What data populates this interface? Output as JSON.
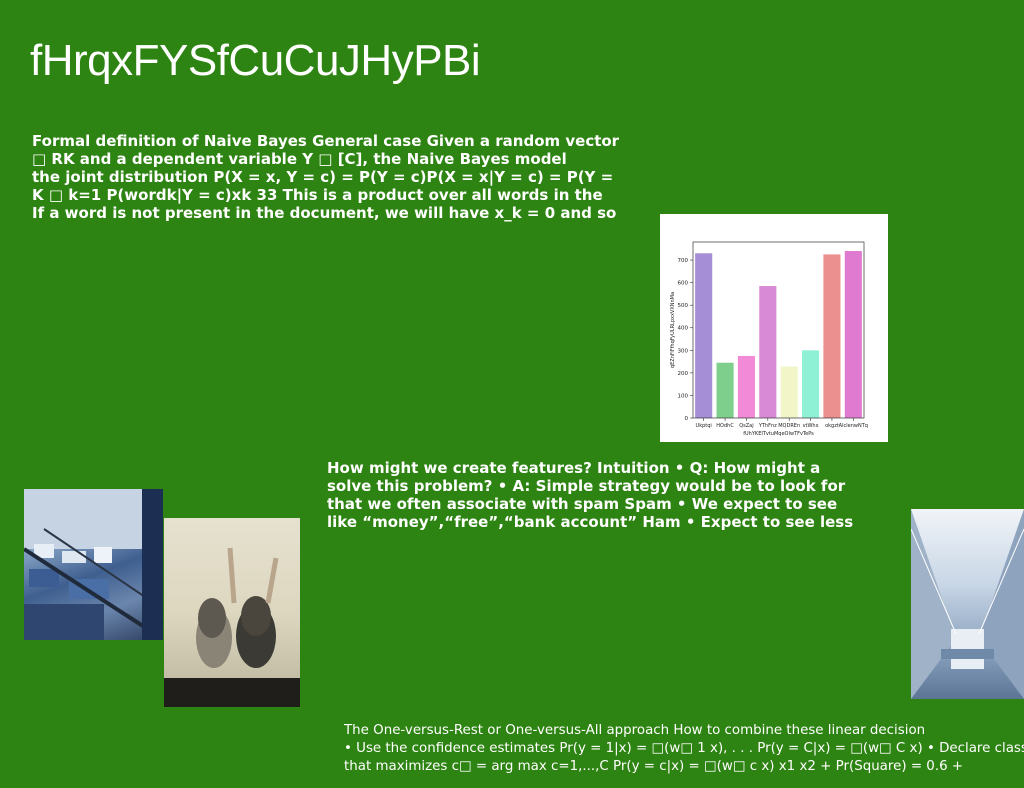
{
  "title": "fHrqxFYSfCuCuJHyPBi",
  "paragraph1": [
    "Formal definition of Naive Bayes General case Given a random vector",
    "□ RK and a dependent variable Y □ [C], the Naive Bayes model",
    "the joint distribution P(X = x, Y = c) = P(Y = c)P(X = x|Y = c) = P(Y =",
    "K □ k=1 P(wordk|Y = c)xk 33 This is a product over all words in the",
    "If a word is not present in the document, we will have x_k = 0 and so"
  ],
  "paragraph2": [
    "How might we create features? Intuition • Q: How might a",
    "solve this problem? • A: Simple strategy would be to look for",
    "that we often associate with spam Spam • We expect to see",
    "like “money”,“free”,“bank account” Ham • Expect to see less"
  ],
  "paragraph3": [
    "The One-versus-Rest or One-versus-All approach How to combine these linear decision",
    "• Use the confidence estimates Pr(y = 1|x) = □(w□ 1 x), . . . Pr(y = C|x) = □(w□ C x) • Declare class",
    "that maximizes c□ = arg max c=1,...,C Pr(y = c|x) = □(w□ c x) x1 x2 + Pr(Square) = 0.6 +"
  ],
  "chart_data": {
    "type": "bar",
    "categories": [
      "Ukptqi",
      "HOdhC",
      "QsZaj",
      "YThFnz",
      "MQDREn",
      "vtWhx",
      "okgzt",
      "AlclenwNTq"
    ],
    "values": [
      730,
      245,
      275,
      585,
      228,
      300,
      725,
      740
    ],
    "colors": [
      "#a58ed6",
      "#7fcf8c",
      "#f28ad8",
      "#d98ad6",
      "#f1f5c8",
      "#8ef0d4",
      "#ec8f8f",
      "#e07ad1"
    ],
    "ylabel": "qEZnFiFfhqFyULRLpxxVXNnMa",
    "xlabel": "fUhYKEITvtuMqeOIwTFvTePs",
    "ylim": [
      0,
      780
    ],
    "yticks": [
      0,
      100,
      200,
      300,
      400,
      500,
      600,
      700
    ],
    "grid": false
  }
}
